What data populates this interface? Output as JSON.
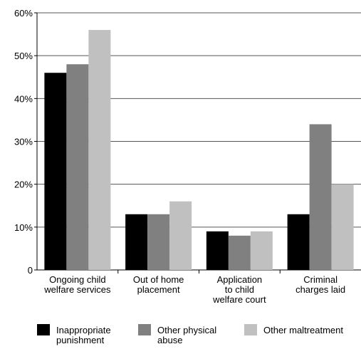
{
  "chart_data": {
    "type": "bar",
    "categories": [
      "Ongoing child\nwelfare services",
      "Out of home\nplacement",
      "Application\nto child\nwelfare court",
      "Criminal\ncharges laid"
    ],
    "series": [
      {
        "name": "Inappropriate\npunishment",
        "color": "#000000",
        "values": [
          46,
          13,
          9,
          13
        ]
      },
      {
        "name": "Other physical\nabuse",
        "color": "#808080",
        "values": [
          48,
          13,
          8,
          34
        ]
      },
      {
        "name": "Other maltreatment",
        "color": "#c0c0c0",
        "values": [
          56,
          16,
          9,
          20
        ]
      }
    ],
    "ylim": [
      0,
      60
    ],
    "yticks": [
      0,
      {
        "value": 10,
        "label": "10%"
      },
      {
        "value": 20,
        "label": "20%"
      },
      {
        "value": 30,
        "label": "30%"
      },
      {
        "value": 40,
        "label": "40%"
      },
      {
        "value": 50,
        "label": "50%"
      },
      {
        "value": 60,
        "label": "60%"
      }
    ],
    "grid": true,
    "legend": "bottom"
  }
}
